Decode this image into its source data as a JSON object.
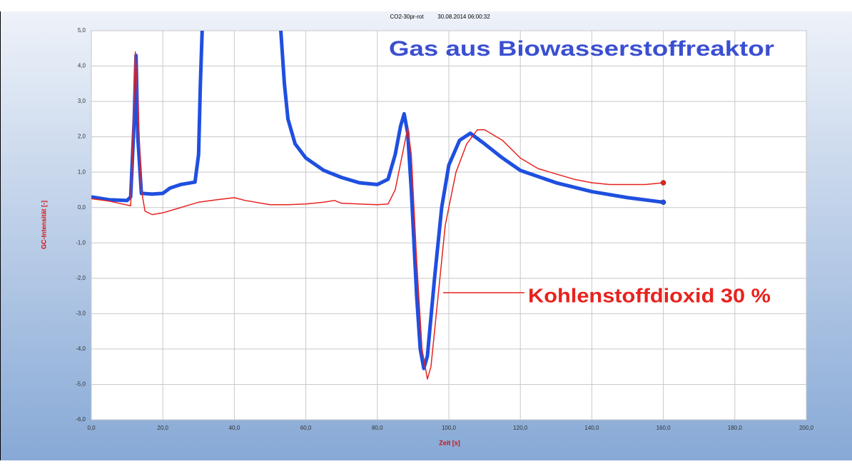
{
  "chart_data": {
    "type": "line",
    "header": [
      "CO2-30pr-rot",
      "30.08.2014 06:00:32"
    ],
    "annotations": [
      {
        "text": "Gas aus Biowasserstoffreaktor",
        "color": "#3a4fd0"
      },
      {
        "text": "Kohlenstoffdioxid 30 %",
        "color": "#e8221e"
      }
    ],
    "xlabel": "Zeit [s]",
    "ylabel": "GC-Intensität [-]",
    "xlim": [
      0,
      200
    ],
    "ylim": [
      -6,
      5
    ],
    "xticks": [
      {
        "value": 0,
        "label": "0,0"
      },
      {
        "value": 20,
        "label": "20,0"
      },
      {
        "value": 40,
        "label": "40,0"
      },
      {
        "value": 60,
        "label": "60,0"
      },
      {
        "value": 80,
        "label": "80,0"
      },
      {
        "value": 100,
        "label": "100,0"
      },
      {
        "value": 120,
        "label": "120,0"
      },
      {
        "value": 140,
        "label": "140,0"
      },
      {
        "value": 160,
        "label": "160,0"
      },
      {
        "value": 180,
        "label": "180,0"
      },
      {
        "value": 200,
        "label": "200,0"
      }
    ],
    "yticks": [
      {
        "value": 5,
        "label": "5,0"
      },
      {
        "value": 4,
        "label": "4,0"
      },
      {
        "value": 3,
        "label": "3,0"
      },
      {
        "value": 2,
        "label": "2,0"
      },
      {
        "value": 1,
        "label": "1,0"
      },
      {
        "value": 0,
        "label": "0,0"
      },
      {
        "value": -1,
        "label": "-1,0"
      },
      {
        "value": -2,
        "label": "-2,0"
      },
      {
        "value": -3,
        "label": "-3,0"
      },
      {
        "value": -4,
        "label": "-4,0"
      },
      {
        "value": -5,
        "label": "-5,0"
      },
      {
        "value": -6,
        "label": "-6,0"
      }
    ],
    "grid": true,
    "series": [
      {
        "color": "#1f4fe0",
        "width": 5,
        "x": [
          0,
          5,
          10,
          11,
          12,
          12.5,
          13,
          14,
          17,
          20,
          22,
          25,
          29,
          30,
          30.5,
          31,
          42,
          53,
          54,
          55,
          57,
          60,
          65,
          70,
          75,
          80,
          83,
          85,
          86.5,
          87.5,
          88.5,
          89.5,
          91,
          92,
          93,
          94,
          96,
          98,
          100,
          103,
          106,
          110,
          115,
          120,
          130,
          140,
          150,
          160
        ],
        "values": [
          0.3,
          0.22,
          0.2,
          0.3,
          2.5,
          4.3,
          2.0,
          0.4,
          0.38,
          0.4,
          0.55,
          0.65,
          0.72,
          1.5,
          3.5,
          5.0,
          null,
          5.0,
          3.5,
          2.5,
          1.8,
          1.4,
          1.05,
          0.85,
          0.7,
          0.65,
          0.8,
          1.5,
          2.3,
          2.65,
          2.1,
          0.5,
          -2.5,
          -4.0,
          -4.55,
          -4.2,
          -2.0,
          0,
          1.2,
          1.9,
          2.1,
          1.8,
          1.4,
          1.05,
          0.7,
          0.45,
          0.28,
          0.15
        ]
      },
      {
        "color": "#e8221e",
        "width": 1.5,
        "x": [
          0,
          5,
          11,
          11.5,
          12.3,
          13,
          14,
          15,
          17,
          20,
          25,
          30,
          35,
          40,
          43,
          50,
          55,
          60,
          65,
          68,
          70,
          75,
          80,
          83,
          85,
          87,
          88.5,
          89.5,
          91,
          92.5,
          94,
          95,
          97,
          99,
          102,
          105,
          108,
          110,
          115,
          120,
          125,
          130,
          135,
          140,
          145,
          150,
          155,
          160
        ],
        "values": [
          0.25,
          0.18,
          0.05,
          1.5,
          4.4,
          3.0,
          0.5,
          -0.1,
          -0.2,
          -0.15,
          0,
          0.15,
          0.22,
          0.28,
          0.2,
          0.08,
          0.08,
          0.1,
          0.15,
          0.2,
          0.12,
          0.1,
          0.08,
          0.1,
          0.5,
          1.5,
          2.25,
          1.5,
          -1.5,
          -4.0,
          -4.85,
          -4.5,
          -2.5,
          -0.5,
          1.0,
          1.8,
          2.2,
          2.2,
          1.9,
          1.4,
          1.1,
          0.95,
          0.8,
          0.7,
          0.65,
          0.65,
          0.65,
          0.7
        ]
      }
    ]
  }
}
